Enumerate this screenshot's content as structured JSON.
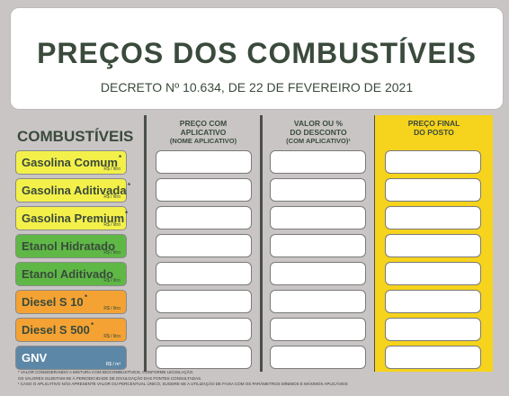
{
  "header": {
    "title": "PREÇOS DOS COMBUSTÍVEIS",
    "subtitle": "DECRETO Nº 10.634, DE 22 DE FEVEREIRO DE 2021"
  },
  "fuel_heading": "COMBUSTÍVEIS",
  "fuels": [
    {
      "name": "Gasolina Comum",
      "mark": "*",
      "unit": "R$ / litro",
      "color": "#f3f04a"
    },
    {
      "name": "Gasolina Aditivada",
      "mark": "*",
      "unit": "R$ / litro",
      "color": "#f3f04a"
    },
    {
      "name": "Gasolina Premium",
      "mark": "*",
      "unit": "R$ / litro",
      "color": "#f3f04a"
    },
    {
      "name": "Etanol Hidratado",
      "mark": "",
      "unit": "R$ / litro",
      "color": "#5fb846"
    },
    {
      "name": "Etanol Aditivado",
      "mark": "",
      "unit": "R$ / litro",
      "color": "#5fb846"
    },
    {
      "name": "Diesel S 10",
      "mark": "*",
      "unit": "R$ / litro",
      "color": "#f4a233"
    },
    {
      "name": "Diesel S 500",
      "mark": "*",
      "unit": "R$ / litro",
      "color": "#f4a233"
    },
    {
      "name": "GNV",
      "mark": "",
      "unit": "R$ / m³",
      "color": "#5d87a6"
    }
  ],
  "columns": [
    {
      "line1": "PREÇO COM",
      "line2": "APLICATIVO",
      "line3": "(NOME APLICATIVO)"
    },
    {
      "line1": "VALOR OU %",
      "line2": "DO DESCONTO",
      "line3": "(COM APLICATIVO)¹"
    },
    {
      "line1": "PREÇO FINAL",
      "line2": "DO POSTO",
      "line3": ""
    }
  ],
  "notes": [
    "* VALOR CONSIDERANDO A MISTURA COM BIOCOMBUSTÍVEIS, CONFORME LEGISLAÇÃO.",
    "OS VALORES SUJEITAM-SE À PERIODICIDADE DE DIVULGAÇÃO DAS FONTES CONSULTADAS.",
    "¹ CASO O APLICATIVO NÃO APRESENTE VALOR OU PERCENTUAL ÚNICO, SUGERE-SE A UTILIZAÇÃO DE FAIXA COM OS PARÂMETROS MÍNIMOS E MÁXIMOS APLICÁVEIS"
  ]
}
